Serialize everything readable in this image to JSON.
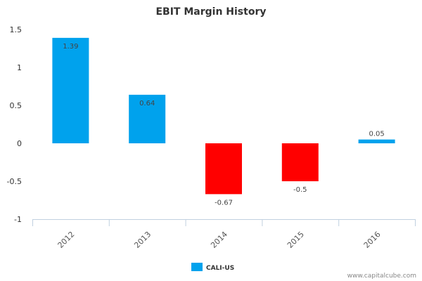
{
  "chart_data": {
    "type": "bar",
    "title": "EBIT Margin History",
    "xlabel": "",
    "ylabel": "",
    "categories": [
      "2012",
      "2013",
      "2014",
      "2015",
      "2016"
    ],
    "series": [
      {
        "name": "CALI-US",
        "values": [
          1.39,
          0.64,
          -0.67,
          -0.5,
          0.05
        ]
      }
    ],
    "data_labels": [
      "1.39",
      "0.64",
      "-0.67",
      "-0.5",
      "0.05"
    ],
    "ylim": [
      -1,
      1.5
    ],
    "yticks": [
      "1.5",
      "1",
      "0.5",
      "0",
      "-0.5",
      "-1"
    ],
    "grid": false,
    "legend": "bottom-center",
    "colors": {
      "positive": "#00a2ed",
      "negative": "#ff0000"
    }
  },
  "credit": "www.capitalcube.com"
}
